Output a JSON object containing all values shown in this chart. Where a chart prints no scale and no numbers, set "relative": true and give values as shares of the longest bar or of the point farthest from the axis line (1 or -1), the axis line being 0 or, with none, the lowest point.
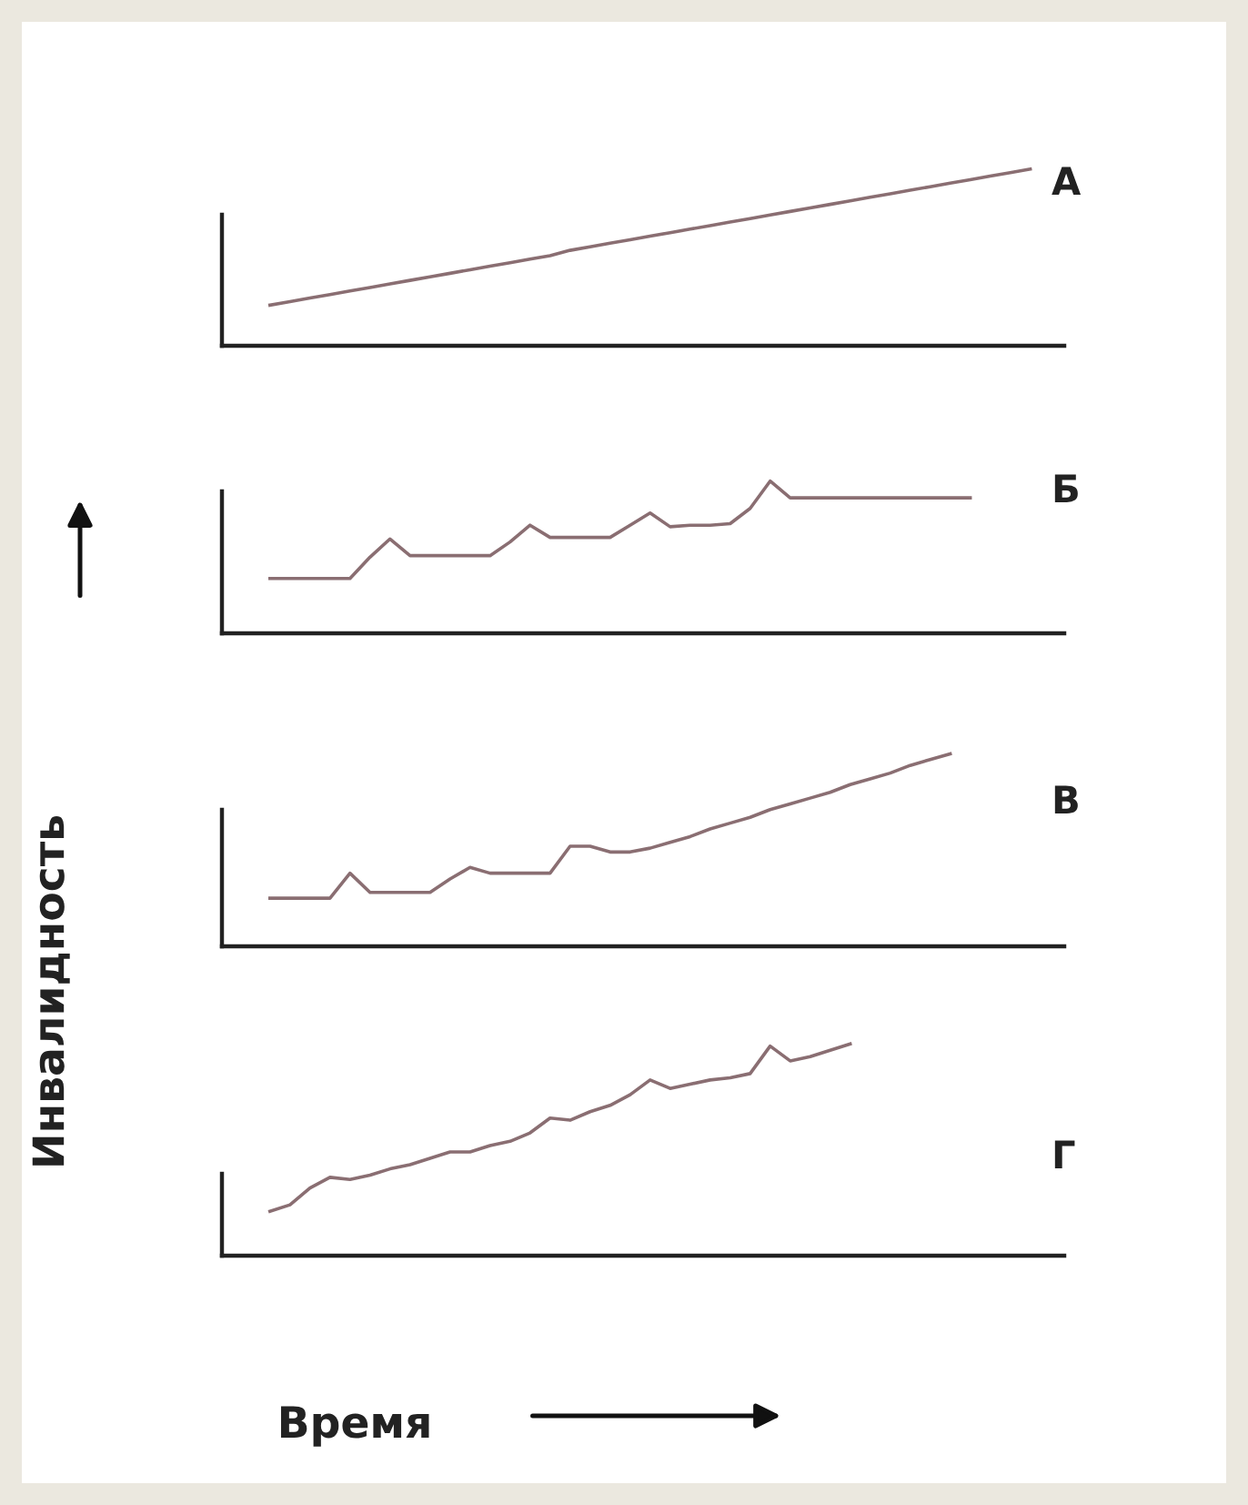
{
  "chart_data": [
    {
      "type": "line",
      "title": "А",
      "relative": true,
      "tick_labels": false,
      "categories": [
        null,
        null,
        null,
        null,
        null,
        null,
        null,
        null,
        null,
        null,
        null,
        null,
        null,
        null,
        null,
        null,
        null,
        null,
        null,
        null,
        null,
        null,
        null,
        null,
        null,
        null,
        null,
        null,
        null,
        null,
        null,
        null,
        null,
        null,
        null,
        null,
        null,
        null,
        null,
        null,
        null,
        null
      ],
      "series": [
        {
          "color": "#8a6e72",
          "values": [
            null,
            null,
            0.23,
            0.25,
            0.27,
            0.29,
            0.31,
            0.33,
            0.35,
            0.37,
            0.39,
            0.41,
            0.43,
            0.45,
            0.47,
            0.49,
            0.51,
            0.54,
            0.56,
            0.58,
            0.6,
            0.62,
            0.64,
            0.66,
            0.68,
            0.7,
            0.72,
            0.74,
            0.76,
            0.78,
            0.8,
            0.82,
            0.84,
            0.86,
            0.88,
            0.9,
            0.92,
            0.94,
            0.96,
            0.98,
            1.0,
            null
          ]
        }
      ]
    },
    {
      "type": "line",
      "title": "Б",
      "relative": true,
      "tick_labels": false,
      "categories": [
        null,
        null,
        null,
        null,
        null,
        null,
        null,
        null,
        null,
        null,
        null,
        null,
        null,
        null,
        null,
        null,
        null,
        null,
        null,
        null,
        null,
        null,
        null,
        null,
        null,
        null,
        null,
        null,
        null,
        null,
        null,
        null,
        null,
        null,
        null,
        null,
        null,
        null,
        null,
        null,
        null,
        null
      ],
      "series": [
        {
          "color": "#8a6e72",
          "values": [
            null,
            null,
            0.36,
            0.36,
            0.36,
            0.36,
            0.36,
            0.5,
            0.62,
            0.51,
            0.51,
            0.51,
            0.51,
            0.51,
            0.6,
            0.71,
            0.63,
            0.63,
            0.63,
            0.63,
            0.71,
            0.79,
            0.7,
            0.71,
            0.71,
            0.72,
            0.82,
            1.0,
            0.89,
            0.89,
            0.89,
            0.89,
            0.89,
            0.89,
            0.89,
            0.89,
            0.89,
            0.89,
            null,
            null,
            null,
            null
          ]
        }
      ]
    },
    {
      "type": "line",
      "title": "В",
      "ylabel": "Инвалидность",
      "relative": true,
      "tick_labels": false,
      "categories": [
        null,
        null,
        null,
        null,
        null,
        null,
        null,
        null,
        null,
        null,
        null,
        null,
        null,
        null,
        null,
        null,
        null,
        null,
        null,
        null,
        null,
        null,
        null,
        null,
        null,
        null,
        null,
        null,
        null,
        null,
        null,
        null,
        null,
        null,
        null,
        null,
        null,
        null,
        null,
        null,
        null,
        null
      ],
      "series": [
        {
          "color": "#8a6e72",
          "values": [
            null,
            null,
            0.25,
            0.25,
            0.25,
            0.25,
            0.38,
            0.28,
            0.28,
            0.28,
            0.28,
            0.35,
            0.41,
            0.38,
            0.38,
            0.38,
            0.38,
            0.52,
            0.52,
            0.49,
            0.49,
            0.51,
            0.54,
            0.57,
            0.61,
            0.64,
            0.67,
            0.71,
            0.74,
            0.77,
            0.8,
            0.84,
            0.87,
            0.9,
            0.94,
            0.97,
            1.0,
            null,
            null,
            null,
            null,
            null
          ]
        }
      ]
    },
    {
      "type": "line",
      "title": "Г",
      "xlabel": "Время",
      "relative": true,
      "tick_labels": false,
      "categories": [
        null,
        null,
        null,
        null,
        null,
        null,
        null,
        null,
        null,
        null,
        null,
        null,
        null,
        null,
        null,
        null,
        null,
        null,
        null,
        null,
        null,
        null,
        null,
        null,
        null,
        null,
        null,
        null,
        null,
        null,
        null,
        null,
        null,
        null,
        null,
        null,
        null,
        null,
        null,
        null,
        null,
        null
      ],
      "series": [
        {
          "color": "#8a6e72",
          "values": [
            null,
            null,
            0.21,
            0.24,
            0.32,
            0.37,
            0.36,
            0.38,
            0.41,
            0.43,
            0.46,
            0.49,
            0.49,
            0.52,
            0.54,
            0.58,
            0.65,
            0.64,
            0.68,
            0.71,
            0.76,
            0.83,
            0.79,
            0.81,
            0.83,
            0.84,
            0.86,
            0.99,
            0.92,
            0.94,
            0.97,
            1.0,
            null,
            null,
            null,
            null,
            null,
            null,
            null,
            null,
            null,
            null
          ]
        }
      ]
    }
  ]
}
